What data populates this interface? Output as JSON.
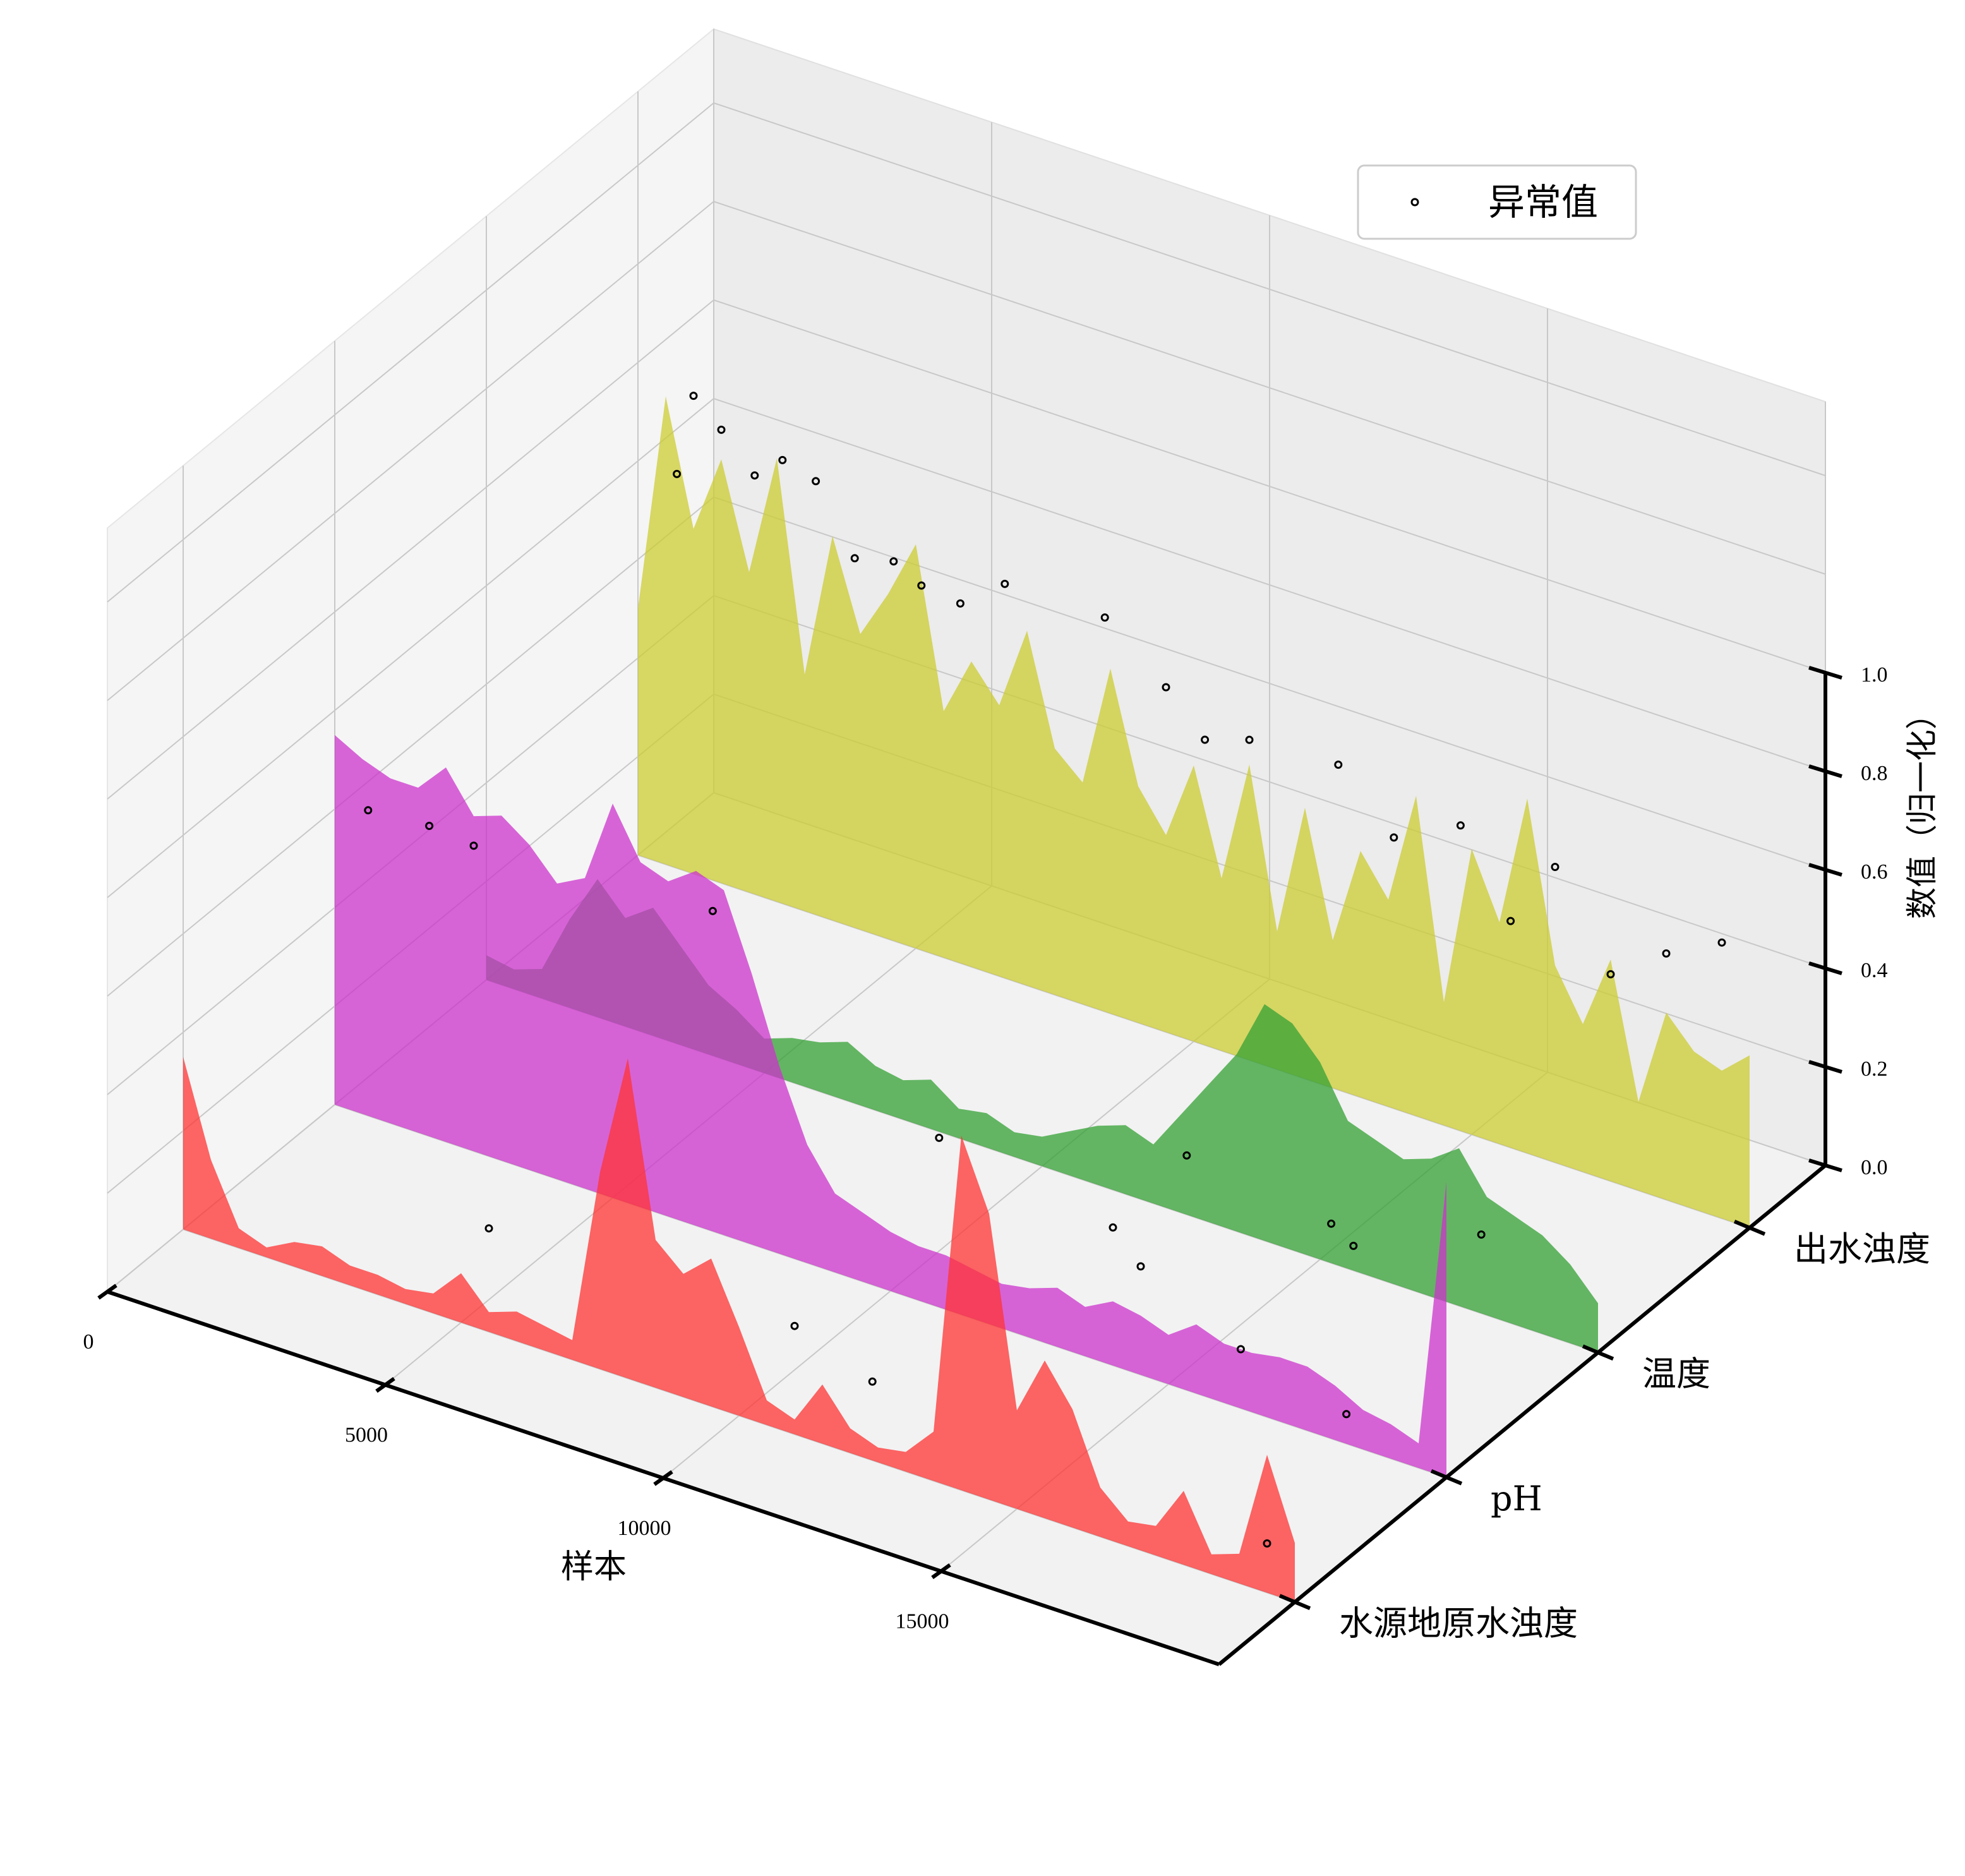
{
  "chart_data": {
    "type": "area",
    "projection": "3d",
    "xlabel": "样本",
    "zlabel": "数值（归一化）",
    "xlim": [
      0,
      20000
    ],
    "zlim": [
      0,
      1
    ],
    "xticks": [
      0,
      5000,
      10000,
      15000
    ],
    "zticks": [
      "0.0",
      "0.2",
      "0.4",
      "0.6",
      "0.8",
      "1.0"
    ],
    "grid": true,
    "legend": {
      "placement": "top-right",
      "entries": [
        {
          "label": "异常值",
          "marker": "hollow-circle",
          "color": "#000000"
        }
      ]
    },
    "series": [
      {
        "name": "水源地原水浊度",
        "color": "#ff3333",
        "x": [
          0,
          500,
          1000,
          1500,
          2000,
          2500,
          3000,
          3500,
          4000,
          4500,
          5000,
          5500,
          6000,
          6500,
          7000,
          7500,
          8000,
          8500,
          9000,
          9500,
          10000,
          10500,
          11000,
          11500,
          12000,
          12500,
          13000,
          13500,
          14000,
          14500,
          15000,
          15500,
          16000,
          16500,
          17000,
          17500,
          18000,
          18500,
          19000,
          19500,
          20000
        ],
        "values": [
          0.35,
          0.16,
          0.04,
          0.02,
          0.05,
          0.06,
          0.04,
          0.04,
          0.03,
          0.04,
          0.1,
          0.04,
          0.06,
          0.05,
          0.04,
          0.4,
          0.65,
          0.3,
          0.25,
          0.3,
          0.18,
          0.05,
          0.03,
          0.12,
          0.05,
          0.03,
          0.04,
          0.1,
          0.72,
          0.58,
          0.2,
          0.32,
          0.24,
          0.1,
          0.05,
          0.06,
          0.15,
          0.04,
          0.06,
          0.28,
          0.12
        ],
        "outliers": [
          [
            5500,
            0.21
          ],
          [
            11000,
            0.22
          ],
          [
            12400,
            0.16
          ],
          [
            13600,
            0.7
          ],
          [
            19500,
            0.1
          ]
        ]
      },
      {
        "name": "pH",
        "color": "#cc33cc",
        "x": [
          0,
          500,
          1000,
          1500,
          2000,
          2500,
          3000,
          3500,
          4000,
          4500,
          5000,
          5500,
          6000,
          6500,
          7000,
          7500,
          8000,
          8500,
          9000,
          9500,
          10000,
          10500,
          11000,
          11500,
          12000,
          12500,
          13000,
          13500,
          14000,
          14500,
          15000,
          15500,
          16000,
          16500,
          17000,
          17500,
          18000,
          18500,
          19000,
          19500,
          20000
        ],
        "values": [
          0.75,
          0.72,
          0.7,
          0.7,
          0.76,
          0.68,
          0.7,
          0.66,
          0.6,
          0.63,
          0.8,
          0.7,
          0.68,
          0.72,
          0.7,
          0.55,
          0.38,
          0.24,
          0.16,
          0.14,
          0.12,
          0.11,
          0.11,
          0.1,
          0.09,
          0.1,
          0.12,
          0.1,
          0.13,
          0.12,
          0.1,
          0.14,
          0.12,
          0.12,
          0.13,
          0.13,
          0.11,
          0.08,
          0.07,
          0.05,
          0.6
        ],
        "outliers": [
          [
            600,
            0.62
          ],
          [
            1700,
            0.63
          ],
          [
            2500,
            0.62
          ],
          [
            6800,
            0.65
          ],
          [
            14000,
            0.28
          ],
          [
            14500,
            0.22
          ],
          [
            16300,
            0.12
          ],
          [
            18200,
            0.06
          ]
        ]
      },
      {
        "name": "温度",
        "color": "#33a033",
        "x": [
          0,
          500,
          1000,
          1500,
          2000,
          2500,
          3000,
          3500,
          4000,
          4500,
          5000,
          5500,
          6000,
          6500,
          7000,
          7500,
          8000,
          8500,
          9000,
          9500,
          10000,
          10500,
          11000,
          11500,
          12000,
          12500,
          13000,
          13500,
          14000,
          14500,
          15000,
          15500,
          16000,
          16500,
          17000,
          17500,
          18000,
          18500,
          19000,
          19500,
          20000
        ],
        "values": [
          0.05,
          0.04,
          0.06,
          0.18,
          0.28,
          0.22,
          0.26,
          0.2,
          0.14,
          0.11,
          0.07,
          0.09,
          0.1,
          0.12,
          0.09,
          0.08,
          0.1,
          0.06,
          0.07,
          0.05,
          0.06,
          0.09,
          0.12,
          0.14,
          0.12,
          0.2,
          0.28,
          0.36,
          0.48,
          0.46,
          0.4,
          0.3,
          0.28,
          0.26,
          0.28,
          0.32,
          0.24,
          0.22,
          0.2,
          0.16,
          0.1
        ],
        "outliers": [
          [
            12600,
            0.12
          ],
          [
            15200,
            0.08
          ],
          [
            15600,
            0.05
          ],
          [
            17900,
            0.16
          ]
        ]
      },
      {
        "name": "出水浊度",
        "color": "#cccc33",
        "x": [
          0,
          500,
          1000,
          1500,
          2000,
          2500,
          3000,
          3500,
          4000,
          4500,
          5000,
          5500,
          6000,
          6500,
          7000,
          7500,
          8000,
          8500,
          9000,
          9500,
          10000,
          10500,
          11000,
          11500,
          12000,
          12500,
          13000,
          13500,
          14000,
          14500,
          15000,
          15500,
          16000,
          16500,
          17000,
          17500,
          18000,
          18500,
          19000,
          19500,
          20000
        ],
        "values": [
          0.5,
          0.95,
          0.7,
          0.86,
          0.65,
          0.9,
          0.48,
          0.78,
          0.6,
          0.7,
          0.82,
          0.5,
          0.62,
          0.55,
          0.72,
          0.5,
          0.45,
          0.7,
          0.48,
          0.4,
          0.56,
          0.35,
          0.6,
          0.28,
          0.55,
          0.3,
          0.5,
          0.42,
          0.65,
          0.25,
          0.58,
          0.45,
          0.72,
          0.4,
          0.3,
          0.45,
          0.18,
          0.38,
          0.32,
          0.3,
          0.35
        ],
        "outliers": [
          [
            700,
            0.8
          ],
          [
            1000,
            0.97
          ],
          [
            1500,
            0.92
          ],
          [
            2100,
            0.85
          ],
          [
            2600,
            0.9
          ],
          [
            3200,
            0.88
          ],
          [
            3900,
            0.75
          ],
          [
            4600,
            0.77
          ],
          [
            5100,
            0.74
          ],
          [
            5800,
            0.73
          ],
          [
            6600,
            0.8
          ],
          [
            8400,
            0.8
          ],
          [
            9500,
            0.7
          ],
          [
            10200,
            0.62
          ],
          [
            11000,
            0.65
          ],
          [
            12600,
            0.66
          ],
          [
            13600,
            0.55
          ],
          [
            14800,
            0.62
          ],
          [
            15700,
            0.46
          ],
          [
            16500,
            0.6
          ],
          [
            17500,
            0.42
          ],
          [
            18500,
            0.5
          ],
          [
            19500,
            0.56
          ]
        ]
      }
    ]
  }
}
